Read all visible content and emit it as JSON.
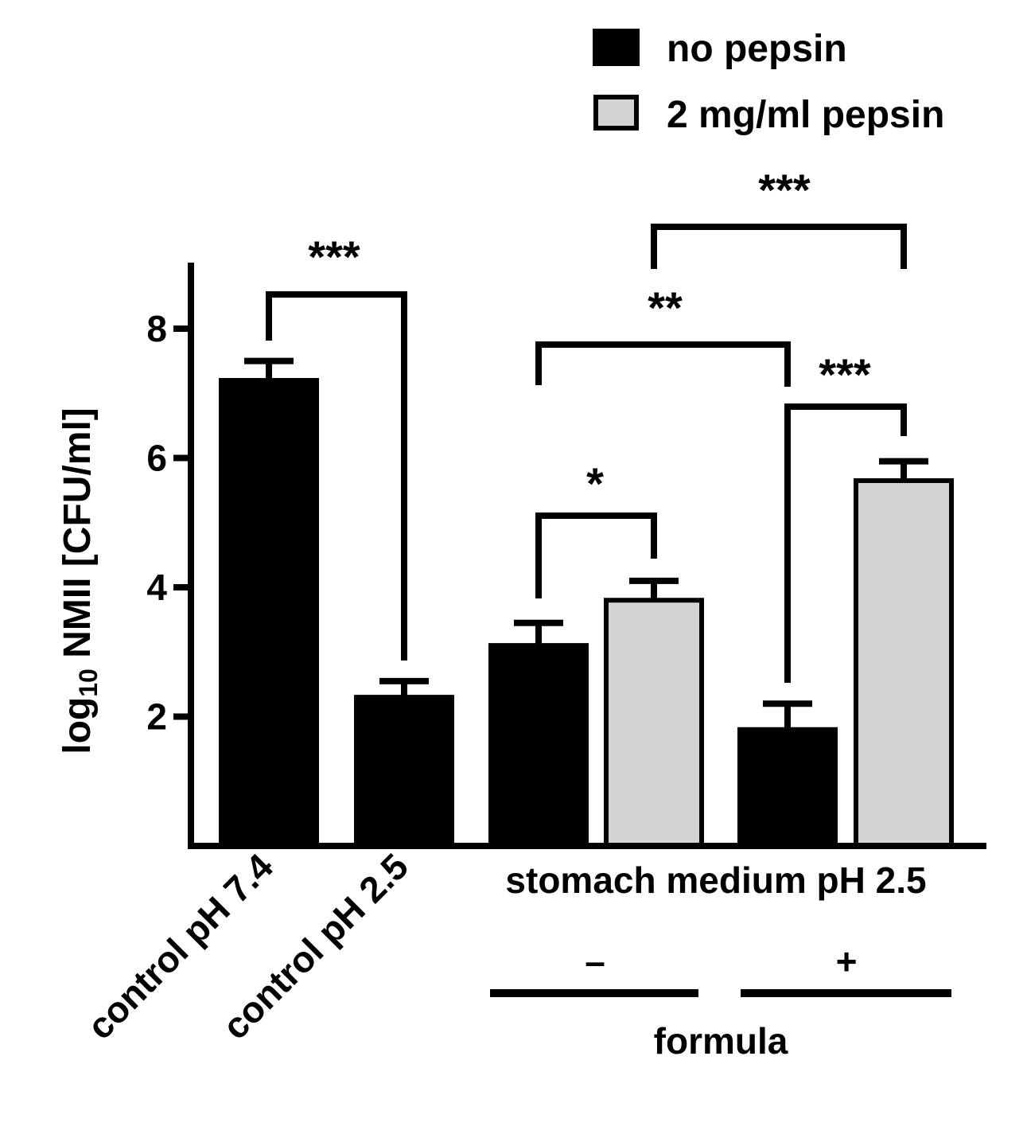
{
  "chart_data": {
    "type": "bar",
    "ylabel": {
      "prefix": "log",
      "subscript": "10",
      "suffix": " NMII [CFU/ml]"
    },
    "ylim": [
      0,
      9
    ],
    "yticks": [
      2,
      4,
      6,
      8
    ],
    "legend": {
      "placement": "top-right",
      "entries": [
        {
          "name": "no pepsin",
          "color": "#000000"
        },
        {
          "name": "2 mg/ml pepsin",
          "color": "#d3d3d3"
        }
      ]
    },
    "bars": [
      {
        "label": "control pH 7.4",
        "pepsin": "no pepsin",
        "value": 7.2,
        "error": 0.3,
        "color": "#000000"
      },
      {
        "label": "control pH 2.5",
        "pepsin": "no pepsin",
        "value": 2.3,
        "error": 0.25,
        "color": "#000000"
      },
      {
        "label": "",
        "pepsin": "no pepsin",
        "value": 3.1,
        "error": 0.35,
        "color": "#000000"
      },
      {
        "label": "",
        "pepsin": "2 mg/ml pepsin",
        "value": 3.8,
        "error": 0.3,
        "color": "#d3d3d3"
      },
      {
        "label": "",
        "pepsin": "no pepsin",
        "value": 1.8,
        "error": 0.4,
        "color": "#000000"
      },
      {
        "label": "",
        "pepsin": "2 mg/ml pepsin",
        "value": 5.65,
        "error": 0.3,
        "color": "#d3d3d3"
      }
    ],
    "group_label": "stomach medium pH 2.5",
    "formula_groups": [
      {
        "label": "–",
        "bars": [
          2,
          3
        ]
      },
      {
        "label": "+",
        "bars": [
          4,
          5
        ]
      }
    ],
    "formula_label": "formula",
    "significance": [
      {
        "from": 0,
        "to": 1,
        "label": "***"
      },
      {
        "from": 2,
        "to": 3,
        "label": "*"
      },
      {
        "from": 2,
        "to": 4,
        "label": "**"
      },
      {
        "from": 4,
        "to": 5,
        "label": "***"
      },
      {
        "from": 3,
        "to": 5,
        "label": "***"
      }
    ]
  }
}
